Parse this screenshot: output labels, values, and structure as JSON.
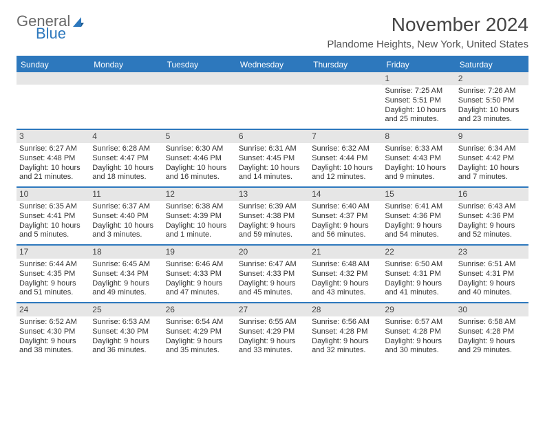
{
  "brand": {
    "word1": "General",
    "word2": "Blue",
    "accent_color": "#2d78bd",
    "text_color": "#6a6a6a"
  },
  "title": "November 2024",
  "subtitle": "Plandome Heights, New York, United States",
  "colors": {
    "header_bg": "#2d78bd",
    "header_text": "#ffffff",
    "datebar_bg": "#e6e6e6",
    "rule": "#2d78bd",
    "body_text": "#333333",
    "page_bg": "#ffffff"
  },
  "fonts": {
    "title_size_pt": 21,
    "subtitle_size_pt": 11,
    "dayhead_size_pt": 9,
    "cell_size_pt": 8
  },
  "layout": {
    "columns": 7,
    "rows": 5,
    "cell_aspect": "auto"
  },
  "day_names": [
    "Sunday",
    "Monday",
    "Tuesday",
    "Wednesday",
    "Thursday",
    "Friday",
    "Saturday"
  ],
  "weeks": [
    [
      null,
      null,
      null,
      null,
      null,
      {
        "date": "1",
        "sunrise": "Sunrise: 7:25 AM",
        "sunset": "Sunset: 5:51 PM",
        "daylight": "Daylight: 10 hours and 25 minutes."
      },
      {
        "date": "2",
        "sunrise": "Sunrise: 7:26 AM",
        "sunset": "Sunset: 5:50 PM",
        "daylight": "Daylight: 10 hours and 23 minutes."
      }
    ],
    [
      {
        "date": "3",
        "sunrise": "Sunrise: 6:27 AM",
        "sunset": "Sunset: 4:48 PM",
        "daylight": "Daylight: 10 hours and 21 minutes."
      },
      {
        "date": "4",
        "sunrise": "Sunrise: 6:28 AM",
        "sunset": "Sunset: 4:47 PM",
        "daylight": "Daylight: 10 hours and 18 minutes."
      },
      {
        "date": "5",
        "sunrise": "Sunrise: 6:30 AM",
        "sunset": "Sunset: 4:46 PM",
        "daylight": "Daylight: 10 hours and 16 minutes."
      },
      {
        "date": "6",
        "sunrise": "Sunrise: 6:31 AM",
        "sunset": "Sunset: 4:45 PM",
        "daylight": "Daylight: 10 hours and 14 minutes."
      },
      {
        "date": "7",
        "sunrise": "Sunrise: 6:32 AM",
        "sunset": "Sunset: 4:44 PM",
        "daylight": "Daylight: 10 hours and 12 minutes."
      },
      {
        "date": "8",
        "sunrise": "Sunrise: 6:33 AM",
        "sunset": "Sunset: 4:43 PM",
        "daylight": "Daylight: 10 hours and 9 minutes."
      },
      {
        "date": "9",
        "sunrise": "Sunrise: 6:34 AM",
        "sunset": "Sunset: 4:42 PM",
        "daylight": "Daylight: 10 hours and 7 minutes."
      }
    ],
    [
      {
        "date": "10",
        "sunrise": "Sunrise: 6:35 AM",
        "sunset": "Sunset: 4:41 PM",
        "daylight": "Daylight: 10 hours and 5 minutes."
      },
      {
        "date": "11",
        "sunrise": "Sunrise: 6:37 AM",
        "sunset": "Sunset: 4:40 PM",
        "daylight": "Daylight: 10 hours and 3 minutes."
      },
      {
        "date": "12",
        "sunrise": "Sunrise: 6:38 AM",
        "sunset": "Sunset: 4:39 PM",
        "daylight": "Daylight: 10 hours and 1 minute."
      },
      {
        "date": "13",
        "sunrise": "Sunrise: 6:39 AM",
        "sunset": "Sunset: 4:38 PM",
        "daylight": "Daylight: 9 hours and 59 minutes."
      },
      {
        "date": "14",
        "sunrise": "Sunrise: 6:40 AM",
        "sunset": "Sunset: 4:37 PM",
        "daylight": "Daylight: 9 hours and 56 minutes."
      },
      {
        "date": "15",
        "sunrise": "Sunrise: 6:41 AM",
        "sunset": "Sunset: 4:36 PM",
        "daylight": "Daylight: 9 hours and 54 minutes."
      },
      {
        "date": "16",
        "sunrise": "Sunrise: 6:43 AM",
        "sunset": "Sunset: 4:36 PM",
        "daylight": "Daylight: 9 hours and 52 minutes."
      }
    ],
    [
      {
        "date": "17",
        "sunrise": "Sunrise: 6:44 AM",
        "sunset": "Sunset: 4:35 PM",
        "daylight": "Daylight: 9 hours and 51 minutes."
      },
      {
        "date": "18",
        "sunrise": "Sunrise: 6:45 AM",
        "sunset": "Sunset: 4:34 PM",
        "daylight": "Daylight: 9 hours and 49 minutes."
      },
      {
        "date": "19",
        "sunrise": "Sunrise: 6:46 AM",
        "sunset": "Sunset: 4:33 PM",
        "daylight": "Daylight: 9 hours and 47 minutes."
      },
      {
        "date": "20",
        "sunrise": "Sunrise: 6:47 AM",
        "sunset": "Sunset: 4:33 PM",
        "daylight": "Daylight: 9 hours and 45 minutes."
      },
      {
        "date": "21",
        "sunrise": "Sunrise: 6:48 AM",
        "sunset": "Sunset: 4:32 PM",
        "daylight": "Daylight: 9 hours and 43 minutes."
      },
      {
        "date": "22",
        "sunrise": "Sunrise: 6:50 AM",
        "sunset": "Sunset: 4:31 PM",
        "daylight": "Daylight: 9 hours and 41 minutes."
      },
      {
        "date": "23",
        "sunrise": "Sunrise: 6:51 AM",
        "sunset": "Sunset: 4:31 PM",
        "daylight": "Daylight: 9 hours and 40 minutes."
      }
    ],
    [
      {
        "date": "24",
        "sunrise": "Sunrise: 6:52 AM",
        "sunset": "Sunset: 4:30 PM",
        "daylight": "Daylight: 9 hours and 38 minutes."
      },
      {
        "date": "25",
        "sunrise": "Sunrise: 6:53 AM",
        "sunset": "Sunset: 4:30 PM",
        "daylight": "Daylight: 9 hours and 36 minutes."
      },
      {
        "date": "26",
        "sunrise": "Sunrise: 6:54 AM",
        "sunset": "Sunset: 4:29 PM",
        "daylight": "Daylight: 9 hours and 35 minutes."
      },
      {
        "date": "27",
        "sunrise": "Sunrise: 6:55 AM",
        "sunset": "Sunset: 4:29 PM",
        "daylight": "Daylight: 9 hours and 33 minutes."
      },
      {
        "date": "28",
        "sunrise": "Sunrise: 6:56 AM",
        "sunset": "Sunset: 4:28 PM",
        "daylight": "Daylight: 9 hours and 32 minutes."
      },
      {
        "date": "29",
        "sunrise": "Sunrise: 6:57 AM",
        "sunset": "Sunset: 4:28 PM",
        "daylight": "Daylight: 9 hours and 30 minutes."
      },
      {
        "date": "30",
        "sunrise": "Sunrise: 6:58 AM",
        "sunset": "Sunset: 4:28 PM",
        "daylight": "Daylight: 9 hours and 29 minutes."
      }
    ]
  ]
}
